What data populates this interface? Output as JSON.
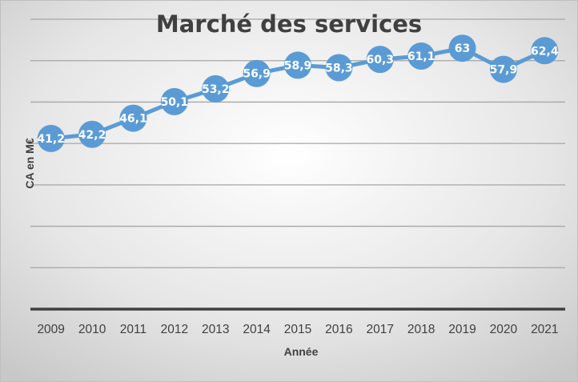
{
  "chart_data": {
    "type": "line",
    "title": "Marché des services",
    "xlabel": "Année",
    "ylabel": "CA en M€",
    "categories": [
      "2009",
      "2010",
      "2011",
      "2012",
      "2013",
      "2014",
      "2015",
      "2016",
      "2017",
      "2018",
      "2019",
      "2020",
      "2021"
    ],
    "values": [
      41.2,
      42.2,
      46.1,
      50.1,
      53.2,
      56.9,
      58.9,
      58.3,
      60.3,
      61.1,
      63,
      57.9,
      62.4
    ],
    "data_labels": [
      "41,2",
      "42,2",
      "46,1",
      "50,1",
      "53,2",
      "56,9",
      "58,9",
      "58,3",
      "60,3",
      "61,1",
      "63",
      "57,9",
      "62,4"
    ],
    "ylim": [
      0,
      70
    ],
    "y_gridline_step": 10,
    "y_tick_labels_shown": false,
    "grid": true,
    "legend": "none",
    "colors": {
      "series": "#5b9bd5",
      "axis": "#404040",
      "grid": "#a6a6a6"
    }
  }
}
